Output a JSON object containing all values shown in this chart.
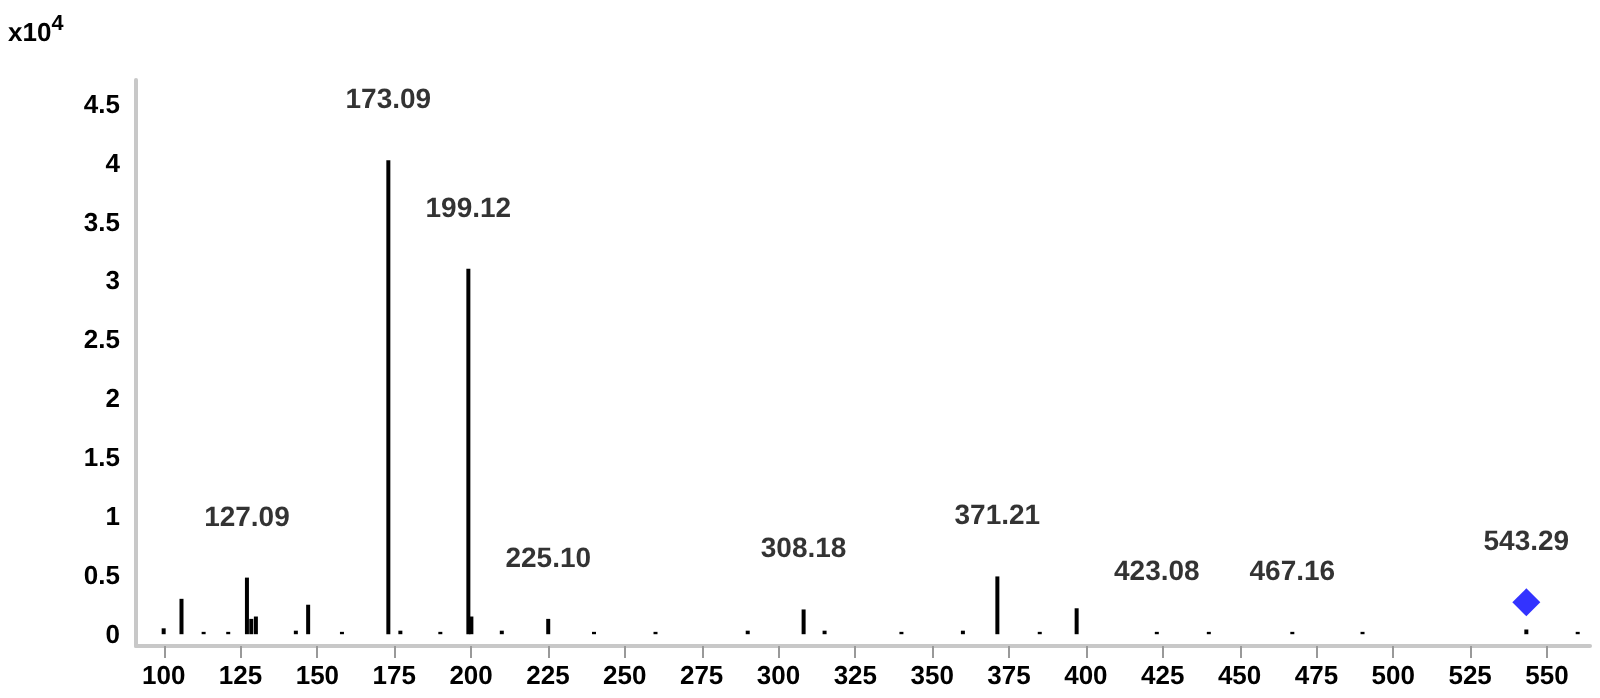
{
  "chart_data": {
    "type": "bar",
    "ylabel": "x10$^{4}$",
    "xlim": [
      91,
      564
    ],
    "xticks": [
      100,
      125,
      150,
      175,
      200,
      225,
      250,
      275,
      300,
      325,
      350,
      375,
      400,
      425,
      450,
      475,
      500,
      525,
      550
    ],
    "ylim": [
      -0.1,
      4.7
    ],
    "yticks": [
      0,
      0.5,
      1,
      1.5,
      2,
      2.5,
      3,
      3.5,
      4,
      4.5
    ],
    "series": [
      {
        "color": "#000000",
        "x": [
          100,
          105.8,
          113,
          121,
          127.09,
          128.5,
          130,
          143,
          147,
          158,
          173.09,
          177,
          190,
          199.12,
          200.1,
          210,
          225.1,
          240,
          260,
          290,
          308.18,
          315,
          340,
          360,
          371.21,
          385,
          397,
          423.08,
          440,
          467.16,
          490,
          543.29,
          560
        ],
        "values": [
          0.05,
          0.3,
          0.02,
          0.02,
          0.48,
          0.13,
          0.15,
          0.03,
          0.25,
          0.02,
          4.02,
          0.03,
          0.02,
          3.1,
          0.15,
          0.03,
          0.13,
          0.02,
          0.02,
          0.03,
          0.21,
          0.03,
          0.02,
          0.03,
          0.49,
          0.02,
          0.22,
          0.02,
          0.02,
          0.02,
          0.02,
          0.04,
          0.02
        ]
      },
      {
        "type": "scatter",
        "color": "#0000ff",
        "marker": "diamond",
        "x": [
          543.29
        ],
        "values": [
          0.27
        ]
      }
    ],
    "annotations": [
      {
        "text": "127.09",
        "x": 127.09,
        "y": 0.48
      },
      {
        "text": "173.09",
        "x": 173.09,
        "y": 4.02
      },
      {
        "text": "199.12",
        "x": 199.12,
        "y": 3.1
      },
      {
        "text": "225.10",
        "x": 225.1,
        "y": 0.13
      },
      {
        "text": "308.18",
        "x": 308.18,
        "y": 0.21
      },
      {
        "text": "371.21",
        "x": 371.21,
        "y": 0.49
      },
      {
        "text": "423.08",
        "x": 423.08,
        "y": 0.02
      },
      {
        "text": "467.16",
        "x": 467.16,
        "y": 0.02
      },
      {
        "text": "543.29",
        "x": 543.29,
        "y": 0.27
      }
    ]
  }
}
